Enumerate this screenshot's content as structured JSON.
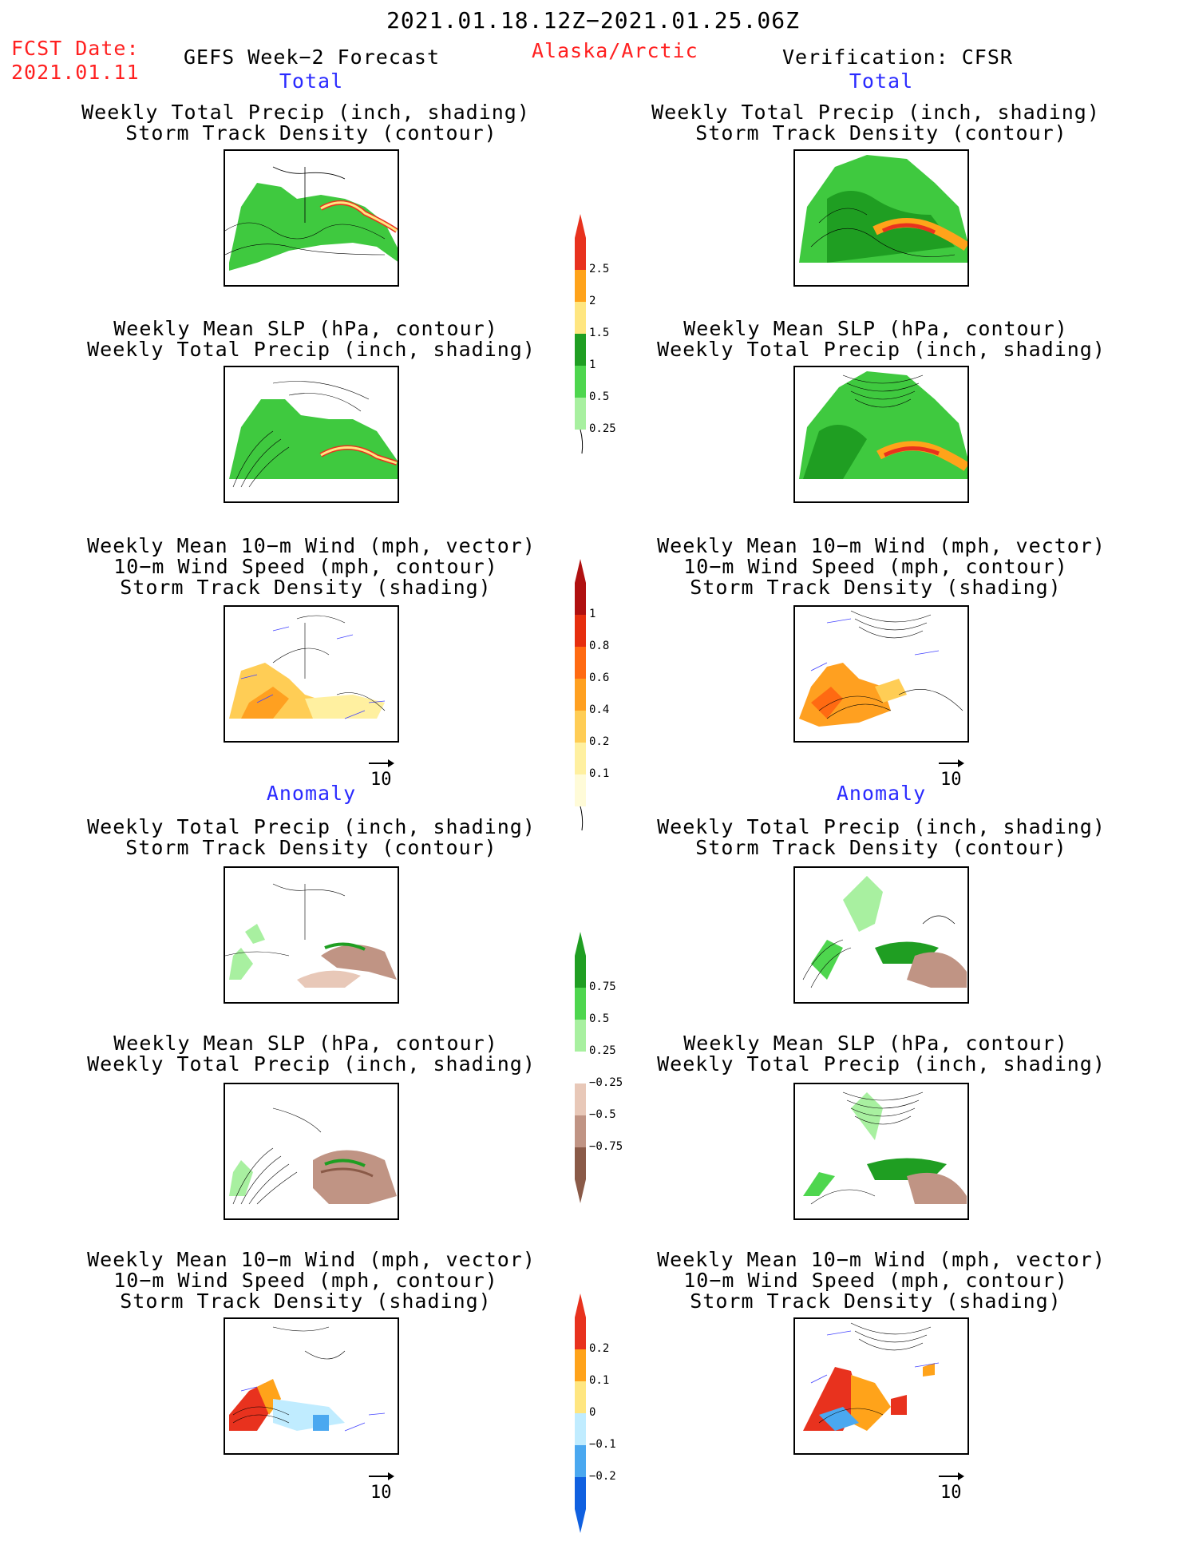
{
  "header": {
    "title": "2021.01.18.12Z−2021.01.25.06Z",
    "fcst_label": "FCST Date:",
    "fcst_date": "2021.01.11",
    "forecast_name": "GEFS Week−2 Forecast",
    "region": "Alaska/Arctic",
    "verification": "Verification: CFSR"
  },
  "sections": {
    "total_left": "Total",
    "total_right": "Total",
    "anomaly_left": "Anomaly",
    "anomaly_right": "Anomaly"
  },
  "titles": {
    "precip_track_1": "Weekly Total Precip (inch, shading)",
    "precip_track_2": "Storm Track Density (contour)",
    "slp_precip_1": "Weekly Mean SLP (hPa, contour)",
    "slp_precip_2": "Weekly Total Precip (inch, shading)",
    "wind_1": "Weekly Mean 10−m Wind (mph, vector)",
    "wind_2": "10−m Wind Speed (mph, contour)",
    "wind_3": "Storm Track Density (shading)"
  },
  "vector_ref": "10",
  "colorbars": {
    "precip_total": {
      "labels": [
        "2.5",
        "2",
        "1.5",
        "1",
        "0.5",
        "0.25"
      ],
      "colors": [
        "#e8321e",
        "#ffa31a",
        "#ffe680",
        "#1f9e22",
        "#4ed64e",
        "#a8f0a0"
      ]
    },
    "track_total": {
      "labels": [
        "1",
        "0.8",
        "0.6",
        "0.4",
        "0.2",
        "0.1"
      ],
      "colors": [
        "#b01010",
        "#e62e0e",
        "#ff6a12",
        "#ffa020",
        "#ffcd55",
        "#fff0a0",
        "#fffbd8"
      ]
    },
    "precip_anom": {
      "labels": [
        "0.75",
        "0.5",
        "0.25",
        "−0.25",
        "−0.5",
        "−0.75"
      ],
      "colors": [
        "#1f9e22",
        "#4ed64e",
        "#a8f0a0",
        "#ffffff",
        "#e8c8b8",
        "#c09484",
        "#8a5a48"
      ]
    },
    "track_anom": {
      "labels": [
        "0.2",
        "0.1",
        "0",
        "−0.1",
        "−0.2"
      ],
      "colors": [
        "#e8321e",
        "#ffa31a",
        "#ffe680",
        "#c0ecff",
        "#4aa8f0",
        "#1060e0"
      ]
    }
  }
}
